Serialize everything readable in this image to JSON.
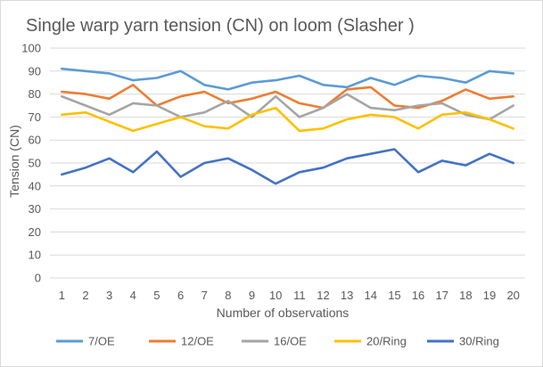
{
  "chart_data": {
    "type": "line",
    "title": "Single warp yarn tension (CN) on loom (Slasher )",
    "xlabel": "Number of observations",
    "ylabel": "Tension  (CN)",
    "x": [
      1,
      2,
      3,
      4,
      5,
      6,
      7,
      8,
      9,
      10,
      11,
      12,
      13,
      14,
      15,
      16,
      17,
      18,
      19,
      20
    ],
    "ylim": [
      0,
      100
    ],
    "yticks": [
      0,
      10,
      20,
      30,
      40,
      50,
      60,
      70,
      80,
      90,
      100
    ],
    "grid": true,
    "legend_position": "bottom",
    "series": [
      {
        "name": "7/OE",
        "color": "#5b9bd5",
        "values": [
          91,
          90,
          89,
          86,
          87,
          90,
          84,
          82,
          85,
          86,
          88,
          84,
          83,
          87,
          84,
          88,
          87,
          85,
          90,
          89
        ]
      },
      {
        "name": "12/OE",
        "color": "#ed7d31",
        "values": [
          81,
          80,
          78,
          84,
          75,
          79,
          81,
          76,
          78,
          81,
          76,
          74,
          82,
          83,
          75,
          74,
          77,
          82,
          78,
          79
        ]
      },
      {
        "name": "16/OE",
        "color": "#a5a5a5",
        "values": [
          79,
          75,
          71,
          76,
          75,
          70,
          72,
          77,
          70,
          79,
          70,
          74,
          80,
          74,
          73,
          75,
          76,
          71,
          69,
          75
        ]
      },
      {
        "name": "20/Ring",
        "color": "#ffc000",
        "values": [
          71,
          72,
          68,
          64,
          67,
          70,
          66,
          65,
          71,
          74,
          64,
          65,
          69,
          71,
          70,
          65,
          71,
          72,
          69,
          65
        ]
      },
      {
        "name": "30/Ring",
        "color": "#4472c4",
        "values": [
          45,
          48,
          52,
          46,
          55,
          44,
          50,
          52,
          47,
          41,
          46,
          48,
          52,
          54,
          56,
          46,
          51,
          49,
          54,
          50
        ]
      }
    ]
  }
}
